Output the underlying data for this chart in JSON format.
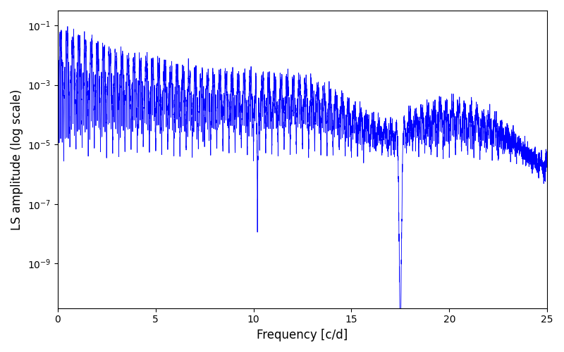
{
  "xlabel": "Frequency [c/d]",
  "ylabel": "LS amplitude (log scale)",
  "xlim": [
    0,
    25
  ],
  "ylim_log": [
    -10.5,
    -0.5
  ],
  "line_color": "#0000ff",
  "line_width": 0.6,
  "background_color": "#ffffff",
  "seed": 12345,
  "n_points": 8000,
  "freq_max": 25.0,
  "xticks": [
    0,
    5,
    10,
    15,
    20,
    25
  ]
}
